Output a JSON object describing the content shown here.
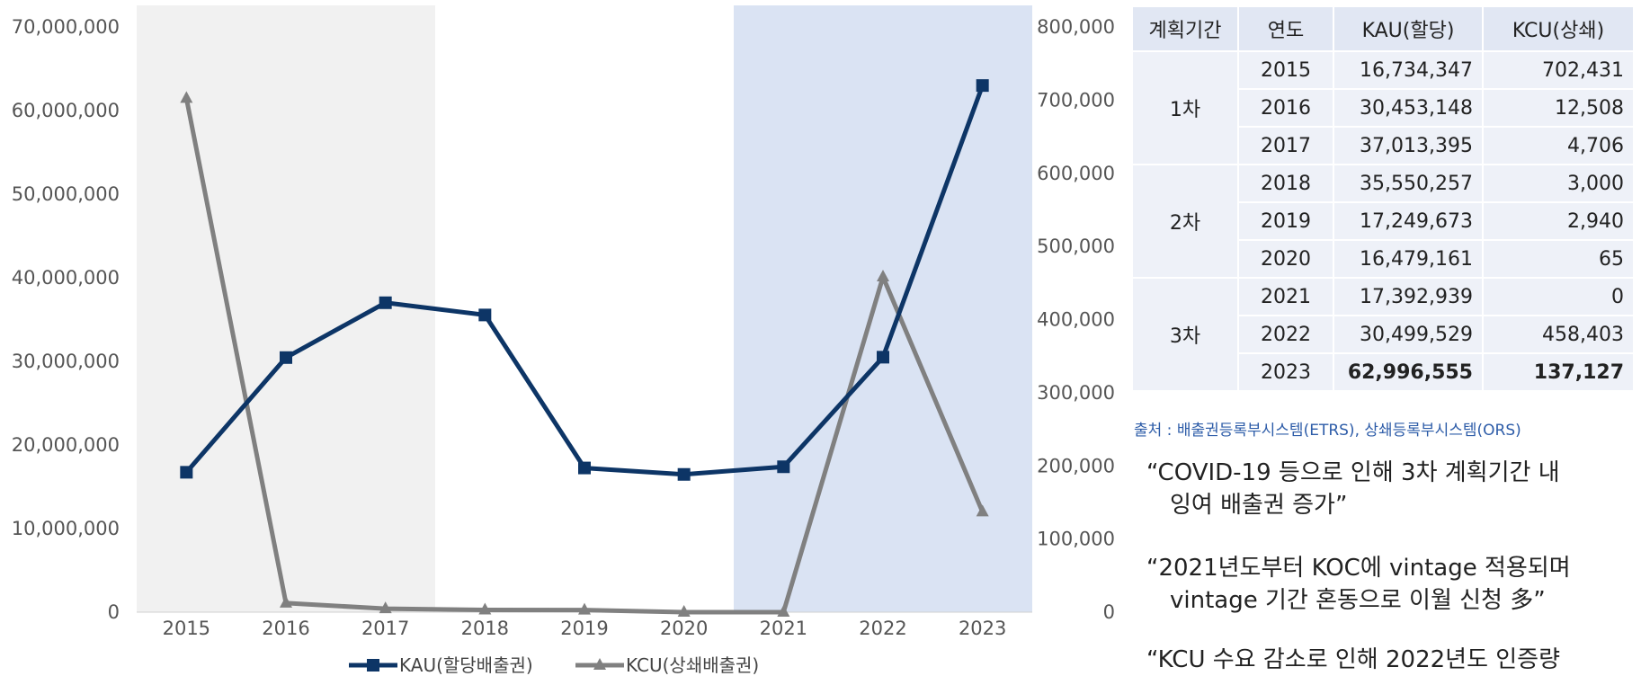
{
  "chart_data": {
    "type": "line",
    "categories": [
      "2015",
      "2016",
      "2017",
      "2018",
      "2019",
      "2020",
      "2021",
      "2022",
      "2023"
    ],
    "series": [
      {
        "name": "KAU(할당배출권)",
        "axis": "left",
        "color": "#0d3566",
        "marker": "square",
        "values": [
          16734347,
          30453148,
          37013395,
          35550257,
          17249673,
          16479161,
          17392939,
          30499529,
          62996555
        ]
      },
      {
        "name": "KCU(상쇄배출권)",
        "axis": "right",
        "color": "#808080",
        "marker": "triangle",
        "values": [
          702431,
          12508,
          4706,
          3000,
          2940,
          65,
          0,
          458403,
          137127
        ]
      }
    ],
    "y_left": {
      "lim": [
        0,
        70000000
      ],
      "tick_labels": [
        "0",
        "10,000,000",
        "20,000,000",
        "30,000,000",
        "40,000,000",
        "50,000,000",
        "60,000,000",
        "70,000,000"
      ]
    },
    "y_right": {
      "lim": [
        0,
        800000
      ],
      "tick_labels": [
        "0",
        "100,000",
        "200,000",
        "300,000",
        "400,000",
        "500,000",
        "600,000",
        "700,000",
        "800,000"
      ]
    },
    "shaded_regions": [
      {
        "from": "2015",
        "to": "2017",
        "color": "#f1f1f1"
      },
      {
        "from": "2021",
        "to": "2023",
        "color": "#dae3f3"
      }
    ],
    "legend": {
      "placement": "bottom-center"
    },
    "grid": false
  },
  "table": {
    "headers": [
      "계획기간",
      "연도",
      "KAU(할당)",
      "KCU(상쇄)"
    ],
    "groups": [
      {
        "period": "1차",
        "rows": [
          {
            "year": "2015",
            "kau": "16,734,347",
            "kcu": "702,431"
          },
          {
            "year": "2016",
            "kau": "30,453,148",
            "kcu": "12,508"
          },
          {
            "year": "2017",
            "kau": "37,013,395",
            "kcu": "4,706"
          }
        ]
      },
      {
        "period": "2차",
        "rows": [
          {
            "year": "2018",
            "kau": "35,550,257",
            "kcu": "3,000"
          },
          {
            "year": "2019",
            "kau": "17,249,673",
            "kcu": "2,940"
          },
          {
            "year": "2020",
            "kau": "16,479,161",
            "kcu": "65"
          }
        ]
      },
      {
        "period": "3차",
        "rows": [
          {
            "year": "2021",
            "kau": "17,392,939",
            "kcu": "0"
          },
          {
            "year": "2022",
            "kau": "30,499,529",
            "kcu": "458,403"
          },
          {
            "year": "2023",
            "kau": "62,996,555",
            "kcu": "137,127"
          }
        ]
      }
    ]
  },
  "source": "출처 : 배출권등록부시스템(ETRS), 상쇄등록부시스템(ORS)",
  "quotes": [
    {
      "line1": "“COVID-19 등으로 인해 3차 계획기간 내",
      "line2": "잉여 배출권 증가”"
    },
    {
      "line1": "“2021년도부터 KOC에 vintage 적용되며",
      "line2": "vintage 기간 혼동으로 이월 신청 多”"
    },
    {
      "line1": "“KCU 수요 감소로 인해 2022년도 인증량",
      "line2": ""
    }
  ]
}
